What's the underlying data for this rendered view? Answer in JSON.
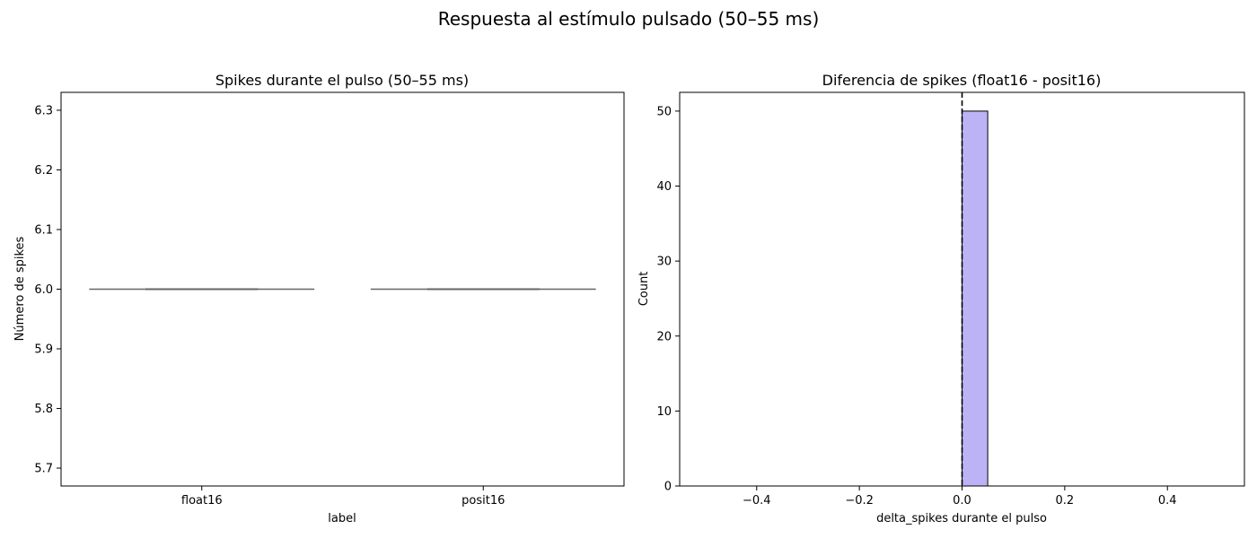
{
  "figure": {
    "suptitle": "Respuesta al estímulo pulsado (50–55 ms)"
  },
  "chart_data": [
    {
      "type": "violin",
      "title": "Spikes durante el pulso (50–55 ms)",
      "xlabel": "label",
      "ylabel": "Número de spikes",
      "categories": [
        "float16",
        "posit16"
      ],
      "values": [
        6,
        6
      ],
      "ylim": [
        5.67,
        6.33
      ],
      "yticks": [
        5.7,
        5.8,
        5.9,
        6.0,
        6.1,
        6.2,
        6.3
      ],
      "ytick_labels": [
        "5.7",
        "5.8",
        "5.9",
        "6.0",
        "6.1",
        "6.2",
        "6.3"
      ],
      "line_color": "#666666",
      "grid": false
    },
    {
      "type": "bar",
      "title": "Diferencia de spikes (float16 - posit16)",
      "xlabel": "delta_spikes durante el pulso",
      "ylabel": "Count",
      "bins": [
        {
          "x0": 0.0,
          "x1": 0.05,
          "count": 50
        }
      ],
      "xlim": [
        -0.55,
        0.55
      ],
      "ylim": [
        0,
        52.5
      ],
      "xticks": [
        -0.4,
        -0.2,
        0.0,
        0.2,
        0.4
      ],
      "xtick_labels": [
        "−0.4",
        "−0.2",
        "0.0",
        "0.2",
        "0.4"
      ],
      "yticks": [
        0,
        10,
        20,
        30,
        40,
        50
      ],
      "ytick_labels": [
        "0",
        "10",
        "20",
        "30",
        "40",
        "50"
      ],
      "baseline_range": [
        -0.5,
        0.5
      ],
      "reference_line_x": 0,
      "bar_color": "#bbb3f5",
      "bar_edge_color": "#000000",
      "grid": false
    }
  ]
}
